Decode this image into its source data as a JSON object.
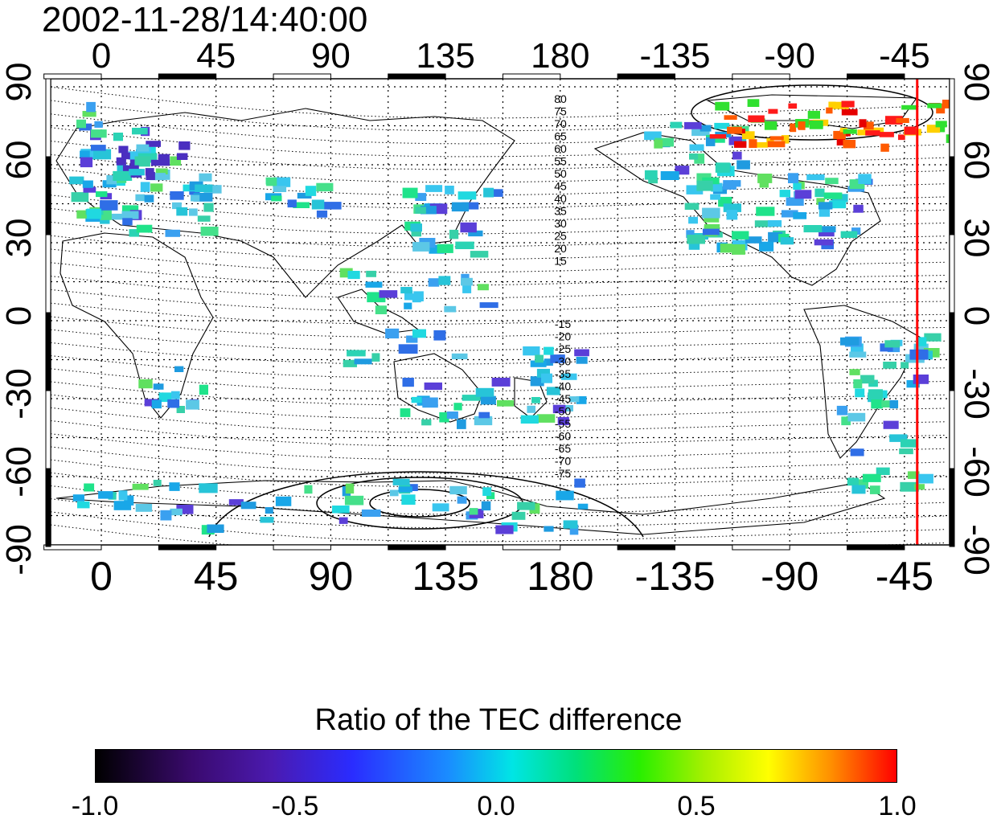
{
  "timestamp": "2002-11-28/14:40:00",
  "map": {
    "lon_ticks": [
      "0",
      "45",
      "90",
      "135",
      "180",
      "-135",
      "-90",
      "-45"
    ],
    "lat_ticks": [
      "90",
      "60",
      "30",
      "0",
      "-30",
      "-60",
      "-90"
    ],
    "contour_labels_north": [
      "80",
      "75",
      "70",
      "65",
      "60",
      "55",
      "50",
      "45",
      "40",
      "35",
      "30",
      "25",
      "20",
      "15"
    ],
    "contour_labels_south": [
      "-15",
      "-20",
      "-25",
      "-30",
      "-35",
      "-40",
      "-45",
      "-50",
      "-55",
      "-60",
      "-65",
      "-70",
      "-75"
    ],
    "marker_line_color": "#ff0000",
    "marker_longitude": -40
  },
  "colorbar": {
    "title": "Ratio of the TEC difference",
    "labels": [
      "-1.0",
      "-0.5",
      "0.0",
      "0.5",
      "1.0"
    ],
    "range": [
      -1.0,
      1.0
    ]
  }
}
